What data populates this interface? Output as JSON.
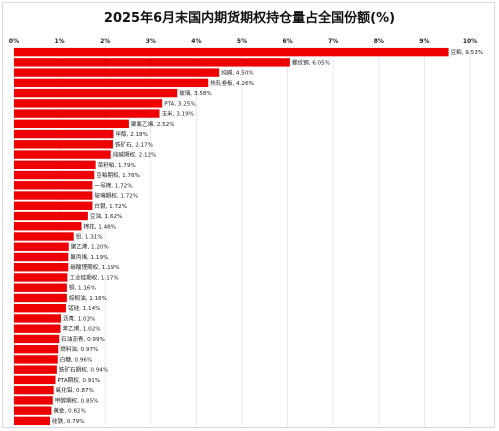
{
  "chart_data": {
    "type": "bar",
    "orientation": "horizontal",
    "title": "2025年6月末国内期货期权持仓量占全国份额(%)",
    "x_ticks": [
      "0%",
      "1%",
      "2%",
      "3%",
      "4%",
      "5%",
      "6%",
      "7%",
      "8%",
      "9%",
      "10%"
    ],
    "xlim": [
      0,
      10
    ],
    "grid": true,
    "bar_color": "#ee0000",
    "categories": [
      "豆粕",
      "螺纹钢",
      "纯碱",
      "热轧卷板",
      "玻璃",
      "PTA",
      "玉米",
      "聚氯乙烯",
      "甲醇",
      "铁矿石",
      "纯碱期权",
      "菜籽粕",
      "豆粕期权",
      "一号棉",
      "玻璃期权",
      "白银",
      "豆油",
      "棉花",
      "铝",
      "聚乙烯",
      "聚丙烯",
      "碳酸锂期权",
      "工业硅期权",
      "铜",
      "棕榈油",
      "锰硅",
      "沥青",
      "苯乙烯",
      "石油沥青",
      "燃料油",
      "白糖",
      "铁矿石期权",
      "PTA期权",
      "氧化铝",
      "甲醇期权",
      "黄金",
      "硅铁"
    ],
    "values": [
      9.53,
      6.05,
      4.5,
      4.26,
      3.58,
      3.25,
      3.19,
      2.52,
      2.18,
      2.17,
      2.12,
      1.79,
      1.76,
      1.72,
      1.72,
      1.72,
      1.62,
      1.48,
      1.31,
      1.2,
      1.19,
      1.19,
      1.17,
      1.16,
      1.16,
      1.14,
      1.03,
      1.02,
      0.99,
      0.97,
      0.96,
      0.94,
      0.91,
      0.87,
      0.85,
      0.82,
      0.79
    ],
    "value_labels": [
      "9.53%",
      "6.05%",
      "4.50%",
      "4.26%",
      "3.58%",
      "3.25%",
      "3.19%",
      "2.52%",
      "2.18%",
      "2.17%",
      "2.12%",
      "1.79%",
      "1.76%",
      "1.72%",
      "1.72%",
      "1.72%",
      "1.62%",
      "1.48%",
      "1.31%",
      "1.20%",
      "1.19%",
      "1.19%",
      "1.17%",
      "1.16%",
      "1.16%",
      "1.14%",
      "1.03%",
      "1.02%",
      "0.99%",
      "0.97%",
      "0.96%",
      "0.94%",
      "0.91%",
      "0.87%",
      "0.85%",
      "0.82%",
      "0.79%"
    ]
  }
}
